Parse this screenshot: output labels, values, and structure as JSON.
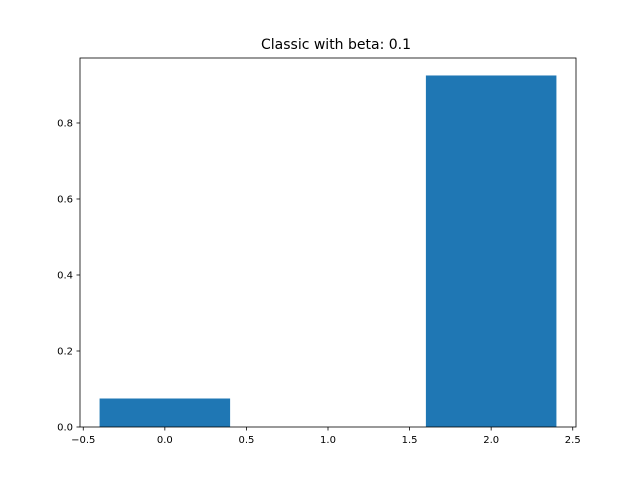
{
  "chart_data": {
    "type": "bar",
    "title": "Classic with beta: 0.1",
    "xlabel": "",
    "ylabel": "",
    "bars": [
      {
        "x": 0,
        "width": 0.8,
        "value": 0.075
      },
      {
        "x": 1,
        "width": 0.8,
        "value": 0.0
      },
      {
        "x": 2,
        "width": 0.8,
        "value": 0.925
      }
    ],
    "xlim": [
      -0.52,
      2.52
    ],
    "ylim": [
      0,
      0.971
    ],
    "xticks": [
      -0.5,
      0.0,
      0.5,
      1.0,
      1.5,
      2.0,
      2.5
    ],
    "xtick_labels": [
      "−0.5",
      "0.0",
      "0.5",
      "1.0",
      "1.5",
      "2.0",
      "2.5"
    ],
    "yticks": [
      0.0,
      0.2,
      0.4,
      0.6,
      0.8
    ],
    "ytick_labels": [
      "0.0",
      "0.2",
      "0.4",
      "0.6",
      "0.8"
    ],
    "bar_color": "#1f77b4",
    "grid": false,
    "legend": "none"
  }
}
